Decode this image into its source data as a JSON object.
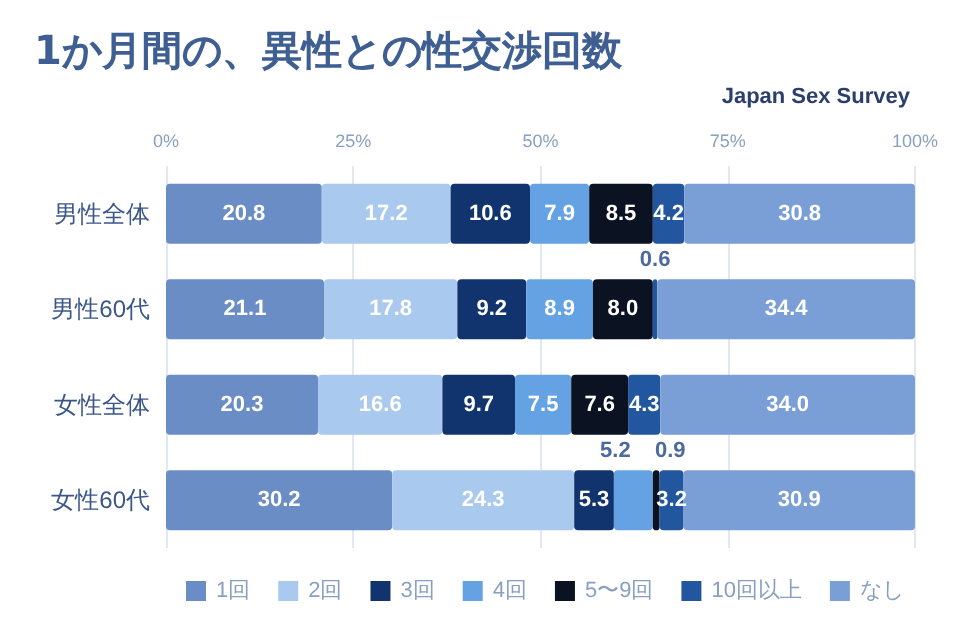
{
  "chart_data": {
    "type": "bar",
    "orientation": "horizontal",
    "stacked": true,
    "title": "1か月間の、異性との性交渉回数",
    "subtitle": "Japan Sex Survey",
    "categories": [
      "男性全体",
      "男性60代",
      "女性全体",
      "女性60代"
    ],
    "series": [
      {
        "name": "1回",
        "color": "#6a8dc6",
        "values": [
          20.8,
          21.1,
          20.3,
          30.2
        ],
        "value_labels": [
          "20.8",
          "21.1",
          "20.3",
          "30.2"
        ]
      },
      {
        "name": "2回",
        "color": "#a9c9ee",
        "values": [
          17.2,
          17.8,
          16.6,
          24.3
        ],
        "value_labels": [
          "17.2",
          "17.8",
          "16.6",
          "24.3"
        ]
      },
      {
        "name": "3回",
        "color": "#11336e",
        "values": [
          10.6,
          9.2,
          9.7,
          5.3
        ],
        "value_labels": [
          "10.6",
          "9.2",
          "9.7",
          "5.3"
        ]
      },
      {
        "name": "4回",
        "color": "#64a2e4",
        "values": [
          7.9,
          8.9,
          7.5,
          5.2
        ],
        "value_labels": [
          "7.9",
          "8.9",
          "7.5",
          "5.2"
        ]
      },
      {
        "name": "5〜9回",
        "color": "#0b1222",
        "values": [
          8.5,
          8.0,
          7.6,
          0.9
        ],
        "value_labels": [
          "8.5",
          "8.0",
          "7.6",
          "0.9"
        ]
      },
      {
        "name": "10回以上",
        "color": "#22569f",
        "values": [
          4.2,
          0.6,
          4.3,
          3.2
        ],
        "value_labels": [
          "4.2",
          "0.6",
          "4.3",
          "3.2"
        ]
      },
      {
        "name": "なし",
        "color": "#7a9ed6",
        "values": [
          30.8,
          34.4,
          34.0,
          30.9
        ],
        "value_labels": [
          "30.8",
          "34.4",
          "34.0",
          "30.9"
        ]
      }
    ],
    "xlim": [
      0,
      100
    ],
    "xticks": [
      {
        "value": 0,
        "label": "0%"
      },
      {
        "value": 25,
        "label": "25%"
      },
      {
        "value": 50,
        "label": "50%"
      },
      {
        "value": 75,
        "label": "75%"
      },
      {
        "value": 100,
        "label": "100%"
      }
    ],
    "grid": "x",
    "legend": "bottom"
  }
}
